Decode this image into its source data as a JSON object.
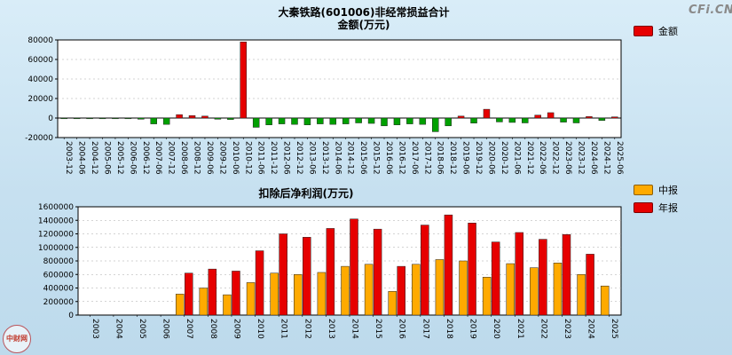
{
  "logo": {
    "text": "CFi.CN"
  },
  "watermark": {
    "text": "中财网"
  },
  "chart_data": [
    {
      "type": "bar",
      "title": "大秦铁路(601006)非经常损益合计",
      "subtitle": "金额(万元)",
      "legend": [
        {
          "label": "金额",
          "color": "#e60000"
        }
      ],
      "legend_position": "top-right",
      "grid": true,
      "positive_color": "#e60000",
      "negative_color": "#00a000",
      "ylim": [
        -20000,
        80000
      ],
      "yticks": [
        -20000,
        0,
        20000,
        40000,
        60000,
        80000
      ],
      "categories": [
        "2003-12",
        "2004-06",
        "2004-12",
        "2005-06",
        "2005-12",
        "2006-06",
        "2006-12",
        "2007-06",
        "2007-12",
        "2008-06",
        "2008-12",
        "2009-06",
        "2009-12",
        "2010-06",
        "2010-12",
        "2011-06",
        "2011-12",
        "2012-06",
        "2012-12",
        "2013-06",
        "2013-12",
        "2014-06",
        "2014-12",
        "2015-06",
        "2015-12",
        "2016-06",
        "2016-12",
        "2017-06",
        "2017-12",
        "2018-06",
        "2018-12",
        "2019-06",
        "2019-12",
        "2020-06",
        "2020-12",
        "2021-06",
        "2021-12",
        "2022-06",
        "2022-12",
        "2023-06",
        "2023-12",
        "2024-06",
        "2024-12",
        "2025-06"
      ],
      "values": [
        -400,
        -300,
        -350,
        -300,
        -350,
        -400,
        -1200,
        -6000,
        -6500,
        3500,
        2500,
        2000,
        -1200,
        -1500,
        78000,
        -9500,
        -7000,
        -6000,
        -6500,
        -7000,
        -6000,
        -6500,
        -6000,
        -5000,
        -5500,
        -8000,
        -7000,
        -6000,
        -6500,
        -14000,
        -8000,
        2000,
        -5200,
        9000,
        -4000,
        -4500,
        -5000,
        3000,
        5500,
        -4200,
        -5000,
        1500,
        -2500,
        1200
      ]
    },
    {
      "type": "bar",
      "title": "扣除后净利润(万元)",
      "legend_position": "top-right",
      "grid": true,
      "ylim": [
        0,
        1600000
      ],
      "yticks": [
        0,
        200000,
        400000,
        600000,
        800000,
        1000000,
        1200000,
        1400000,
        1600000
      ],
      "categories": [
        "2003",
        "2004",
        "2005",
        "2006",
        "2007",
        "2008",
        "2009",
        "2010",
        "2011",
        "2012",
        "2013",
        "2014",
        "2015",
        "2016",
        "2017",
        "2018",
        "2019",
        "2020",
        "2021",
        "2022",
        "2023",
        "2024",
        "2025"
      ],
      "series": [
        {
          "name": "中报",
          "color": "#ffaa00",
          "values": [
            0,
            0,
            0,
            0,
            310000,
            400000,
            300000,
            480000,
            620000,
            600000,
            630000,
            720000,
            750000,
            350000,
            750000,
            820000,
            800000,
            560000,
            760000,
            700000,
            770000,
            600000,
            430000
          ]
        },
        {
          "name": "年报",
          "color": "#e60000",
          "values": [
            0,
            0,
            0,
            0,
            620000,
            680000,
            650000,
            950000,
            1200000,
            1150000,
            1280000,
            1420000,
            1270000,
            720000,
            1330000,
            1480000,
            1360000,
            1080000,
            1220000,
            1120000,
            1190000,
            900000,
            0
          ]
        }
      ]
    }
  ]
}
